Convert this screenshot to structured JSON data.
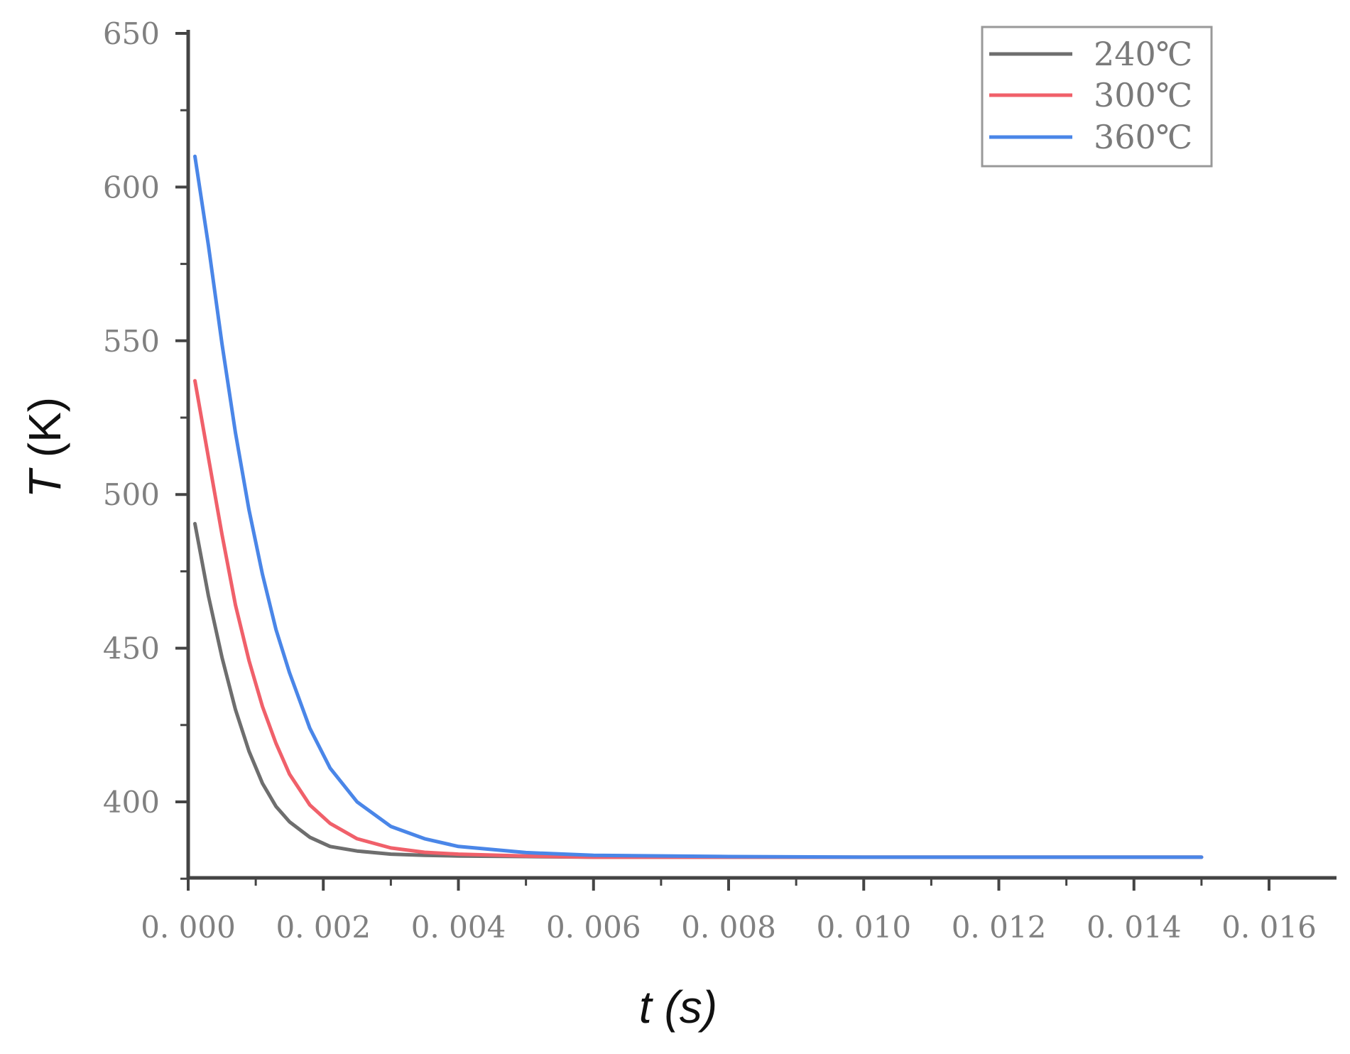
{
  "chart_data": {
    "type": "line",
    "xlabel_var": "t",
    "xlabel_unit": "(s)",
    "ylabel_var": "T",
    "ylabel_unit": "(K)",
    "xlim": [
      0,
      0.0165
    ],
    "ylim": [
      375,
      650
    ],
    "x_ticks": [
      0,
      0.002,
      0.004,
      0.006,
      0.008,
      0.01,
      0.012,
      0.014,
      0.016
    ],
    "x_tick_labels": [
      "0. 000",
      "0. 002",
      "0. 004",
      "0. 006",
      "0. 008",
      "0. 010",
      "0. 012",
      "0. 014",
      "0. 016"
    ],
    "y_ticks": [
      400,
      450,
      500,
      550,
      600,
      650
    ],
    "y_tick_labels": [
      "400",
      "450",
      "500",
      "550",
      "600",
      "650"
    ],
    "grid": false,
    "legend_position": "top-right",
    "series": [
      {
        "name": "240℃",
        "color": "#6e6e6e",
        "x": [
          0.0001,
          0.0003,
          0.0005,
          0.0007,
          0.0009,
          0.0011,
          0.0013,
          0.0015,
          0.0018,
          0.0021,
          0.0025,
          0.003,
          0.0035,
          0.004,
          0.005,
          0.006,
          0.008,
          0.01,
          0.012,
          0.015
        ],
        "y": [
          490.5,
          467,
          447,
          430,
          416.5,
          406,
          398.5,
          393.5,
          388.5,
          385.5,
          384,
          383,
          382.6,
          382.4,
          382.2,
          382,
          382,
          382,
          382,
          382
        ]
      },
      {
        "name": "300℃",
        "color": "#f0606a",
        "x": [
          0.0001,
          0.0003,
          0.0005,
          0.0007,
          0.0009,
          0.0011,
          0.0013,
          0.0015,
          0.0018,
          0.0021,
          0.0025,
          0.003,
          0.0035,
          0.004,
          0.005,
          0.006,
          0.008,
          0.01,
          0.012,
          0.015
        ],
        "y": [
          537,
          512,
          487,
          464,
          446,
          431,
          419,
          409,
          399,
          393,
          388,
          385,
          383.6,
          383,
          382.4,
          382,
          382,
          382,
          382,
          382
        ]
      },
      {
        "name": "360℃",
        "color": "#4a86e8",
        "x": [
          0.0001,
          0.0003,
          0.0005,
          0.0007,
          0.0009,
          0.0011,
          0.0013,
          0.0015,
          0.0018,
          0.0021,
          0.0025,
          0.003,
          0.0035,
          0.004,
          0.005,
          0.006,
          0.008,
          0.01,
          0.012,
          0.015
        ],
        "y": [
          610,
          581,
          549,
          520,
          495,
          474,
          456,
          442,
          424,
          411,
          400,
          392,
          388,
          385.5,
          383.5,
          382.6,
          382.2,
          382,
          382,
          382
        ]
      }
    ]
  }
}
